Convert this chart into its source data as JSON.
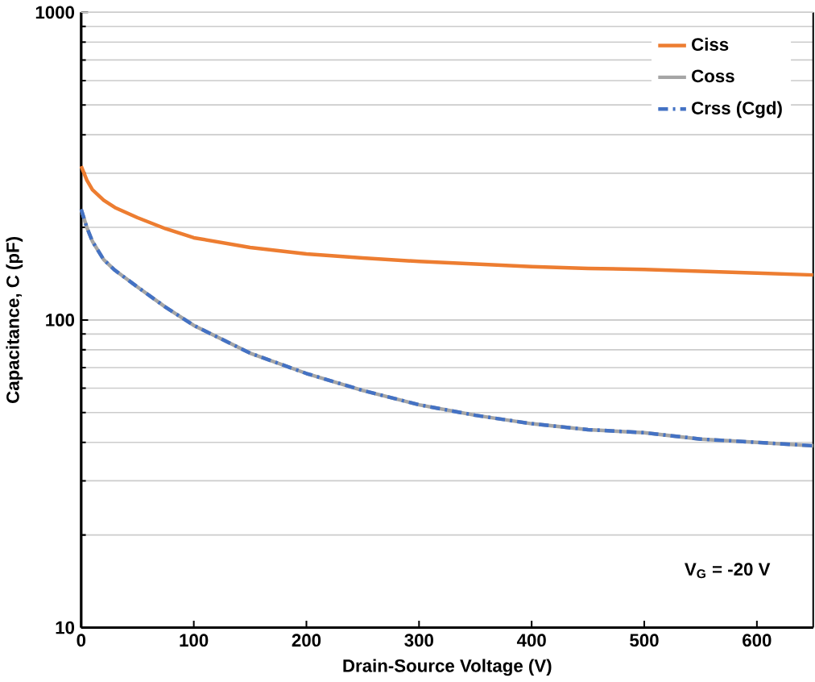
{
  "chart_data": {
    "type": "line",
    "xlabel": "Drain-Source Voltage (V)",
    "ylabel": "Capacitance, C (pF)",
    "x": [
      0,
      5,
      10,
      20,
      30,
      50,
      75,
      100,
      150,
      200,
      250,
      300,
      350,
      400,
      450,
      500,
      550,
      600,
      650
    ],
    "series": [
      {
        "name": "Ciss",
        "color": "#ed7d31",
        "line_style": "solid",
        "values": [
          316,
          285,
          265,
          245,
          232,
          215,
          198,
          185,
          172,
          164,
          159,
          155,
          152,
          149,
          147,
          146,
          144,
          142,
          140
        ]
      },
      {
        "name": "Coss",
        "color": "#a5a5a5",
        "line_style": "solid",
        "values": [
          229,
          200,
          180,
          157,
          145,
          128,
          110,
          96,
          78,
          67,
          59,
          53,
          49,
          46,
          44,
          43,
          41,
          40,
          39
        ]
      },
      {
        "name": "Crss (Cgd)",
        "color": "#4472c4",
        "line_style": "dashed",
        "values": [
          229,
          200,
          180,
          157,
          145,
          128,
          110,
          96,
          78,
          67,
          59,
          53,
          49,
          46,
          44,
          43,
          41,
          40,
          39
        ]
      }
    ],
    "xlim": [
      0,
      650
    ],
    "ylim": [
      10,
      1000
    ],
    "xticks": [
      0,
      100,
      200,
      300,
      400,
      500,
      600
    ],
    "yticks": [
      10,
      100,
      1000
    ],
    "log": "y",
    "grid": "y",
    "legend": "top right",
    "marker": "none",
    "annotations": [
      "V$_{G}$ = -20 V"
    ]
  }
}
